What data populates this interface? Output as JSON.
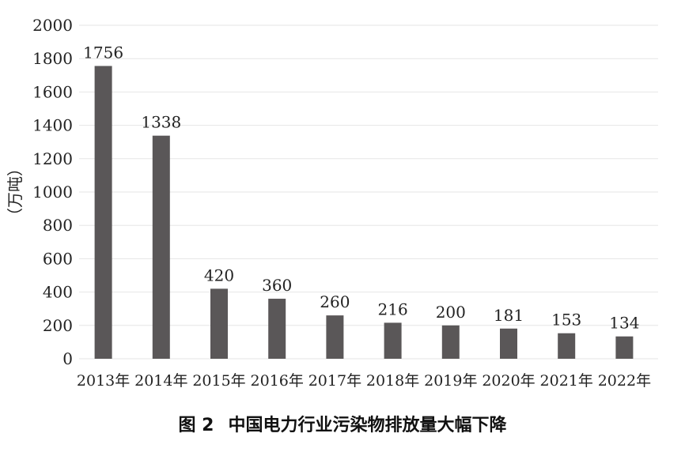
{
  "chart_data": {
    "type": "bar",
    "title": "",
    "xlabel": "",
    "ylabel": "（万吨）",
    "categories": [
      "2013年",
      "2014年",
      "2015年",
      "2016年",
      "2017年",
      "2018年",
      "2019年",
      "2020年",
      "2021年",
      "2022年"
    ],
    "series": [
      {
        "values": [
          1756,
          1338,
          420,
          360,
          260,
          216,
          200,
          181,
          153,
          134
        ],
        "color": "#5a5758"
      }
    ],
    "ylim": [
      0,
      2000
    ],
    "yticks": [
      "0",
      "200",
      "400",
      "600",
      "800",
      "1000",
      "1200",
      "1400",
      "1600",
      "1800",
      "2000"
    ],
    "data_labels": [
      "1756",
      "1338",
      "420",
      "360",
      "260",
      "216",
      "200",
      "181",
      "153",
      "134"
    ],
    "grid": true,
    "grid_color": "#e6e6e6"
  },
  "caption": {
    "figure": "图 2",
    "text": "中国电力行业污染物排放量大幅下降"
  }
}
